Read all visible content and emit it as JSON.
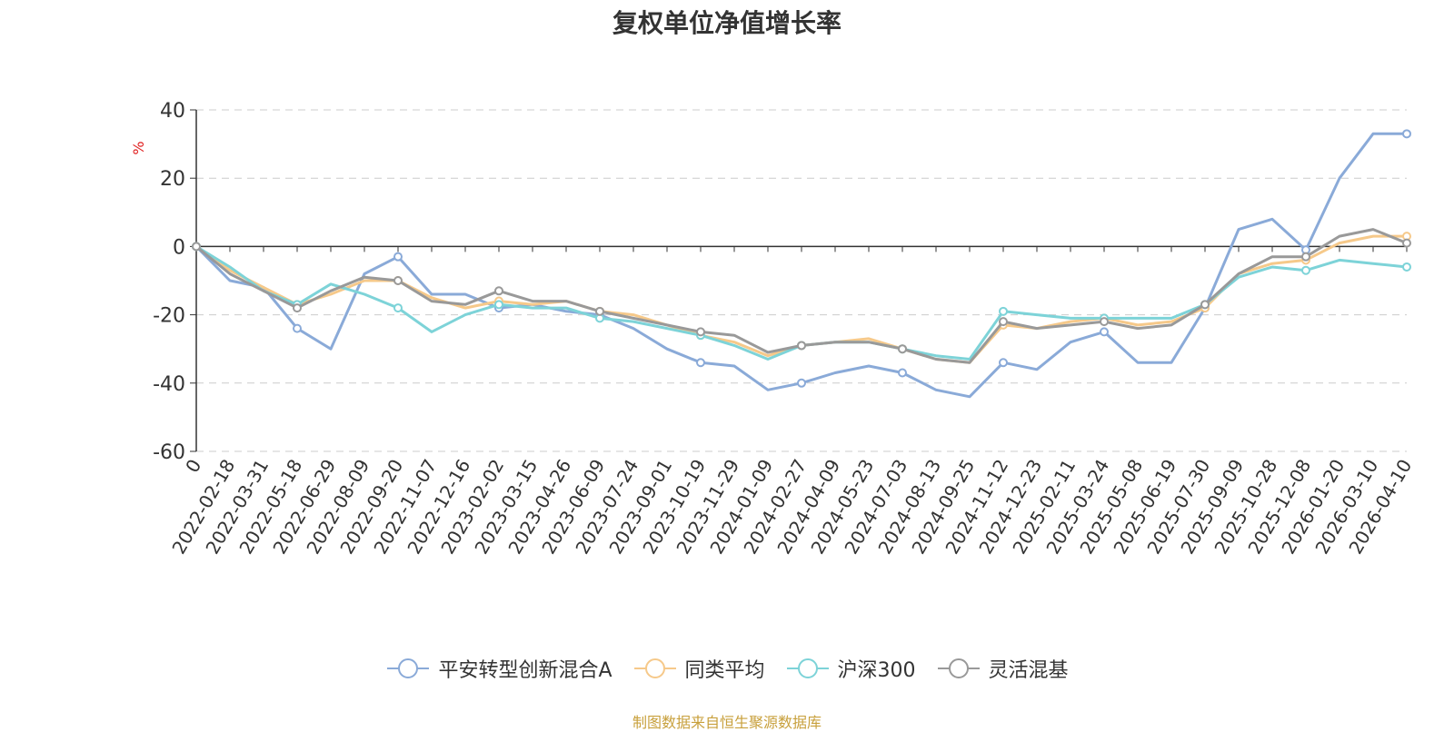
{
  "title": "复权单位净值增长率",
  "source": "制图数据来自恒生聚源数据库",
  "chart_data": {
    "type": "line",
    "title": "复权单位净值增长率",
    "ylabel": "%",
    "ylim": [
      -60,
      40
    ],
    "yticks": [
      40,
      20,
      0,
      -20,
      -40,
      -60
    ],
    "grid": true,
    "legend_position": "bottom",
    "x_labels": [
      "0",
      "2022-02-18",
      "2022-03-31",
      "2022-05-18",
      "2022-06-29",
      "2022-08-09",
      "2022-09-20",
      "2022-11-07",
      "2022-12-16",
      "2023-02-02",
      "2023-03-15",
      "2023-04-26",
      "2023-06-09",
      "2023-07-24",
      "2023-09-01",
      "2023-10-19",
      "2023-11-29",
      "2024-01-09",
      "2024-02-27",
      "2024-04-09",
      "2024-05-23",
      "2024-07-03",
      "2024-08-13",
      "2024-09-25",
      "2024-11-12",
      "2024-12-23",
      "2025-02-11",
      "2025-03-24",
      "2025-05-08",
      "2025-06-19",
      "2025-07-30",
      "2025-09-09",
      "2025-10-28",
      "2025-12-08",
      "2026-01-20",
      "2026-03-10",
      "2026-04-10"
    ],
    "series": [
      {
        "name": "平安转型创新混合A",
        "color": "#8aaad8",
        "values": [
          0,
          -10,
          -12,
          -24,
          -30,
          -8,
          -3,
          -14,
          -14,
          -18,
          -17,
          -19,
          -20,
          -24,
          -30,
          -34,
          -35,
          -42,
          -40,
          -37,
          -35,
          -37,
          -42,
          -44,
          -34,
          -36,
          -28,
          -25,
          -34,
          -34,
          -18,
          5,
          8,
          -1,
          20,
          33,
          33
        ]
      },
      {
        "name": "同类平均",
        "color": "#f6c98a",
        "values": [
          0,
          -7,
          -12,
          -17,
          -14,
          -10,
          -10,
          -15,
          -18,
          -16,
          -17,
          -16,
          -19,
          -20,
          -23,
          -26,
          -28,
          -32,
          -29,
          -28,
          -27,
          -30,
          -33,
          -34,
          -23,
          -24,
          -22,
          -21,
          -23,
          -22,
          -18,
          -8,
          -5,
          -4,
          1,
          3,
          3
        ]
      },
      {
        "name": "沪深300",
        "color": "#7dd3d8",
        "values": [
          0,
          -6,
          -13,
          -17,
          -11,
          -14,
          -18,
          -25,
          -20,
          -17,
          -18,
          -18,
          -21,
          -22,
          -24,
          -26,
          -29,
          -33,
          -29,
          -28,
          -28,
          -30,
          -32,
          -33,
          -19,
          -20,
          -21,
          -21,
          -21,
          -21,
          -17,
          -9,
          -6,
          -7,
          -4,
          -5,
          -6
        ]
      },
      {
        "name": "灵活混基",
        "color": "#999999",
        "values": [
          0,
          -8,
          -13,
          -18,
          -13,
          -9,
          -10,
          -16,
          -17,
          -13,
          -16,
          -16,
          -19,
          -21,
          -23,
          -25,
          -26,
          -31,
          -29,
          -28,
          -28,
          -30,
          -33,
          -34,
          -22,
          -24,
          -23,
          -22,
          -24,
          -23,
          -17,
          -8,
          -3,
          -3,
          3,
          5,
          1
        ]
      }
    ]
  }
}
